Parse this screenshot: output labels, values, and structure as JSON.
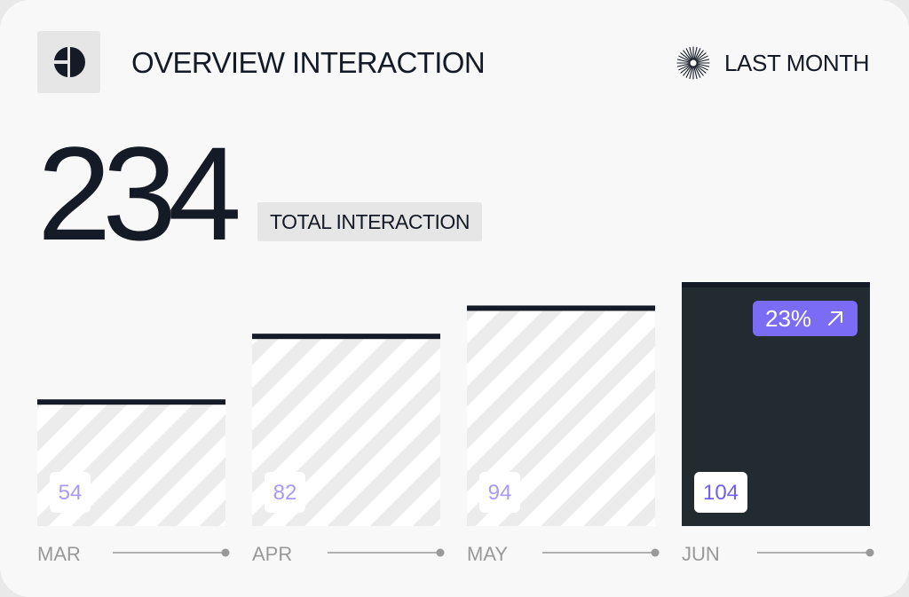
{
  "header": {
    "title": "OVERVIEW INTERACTION",
    "period": "LAST MONTH",
    "logo_icon": "half-circle-logo-icon",
    "period_icon": "sunburst-icon"
  },
  "summary": {
    "total": "234",
    "total_label": "TOTAL INTERACTION"
  },
  "colors": {
    "ink": "#141a26",
    "accent": "#7b6cf6",
    "highlight_bar": "#222b30",
    "hatch": "#ececec",
    "axis": "#999999",
    "muted_text": "#999999"
  },
  "chart_data": {
    "type": "bar",
    "categories": [
      "MAR",
      "APR",
      "MAY",
      "JUN"
    ],
    "values": [
      54,
      82,
      94,
      104
    ],
    "highlight": "JUN",
    "change_badge": "23%",
    "change_direction": "up",
    "title": "",
    "xlabel": "",
    "ylabel": "",
    "ylim": [
      0,
      104
    ]
  }
}
